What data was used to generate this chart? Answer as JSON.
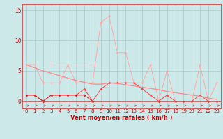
{
  "x": [
    0,
    1,
    2,
    3,
    4,
    5,
    6,
    7,
    8,
    9,
    10,
    11,
    12,
    13,
    14,
    15,
    16,
    17,
    18,
    19,
    20,
    21,
    22,
    23
  ],
  "line_rafales": [
    6.0,
    6.0,
    3.0,
    3.0,
    3.0,
    6.0,
    3.0,
    3.0,
    3.0,
    13.0,
    14.0,
    8.0,
    8.0,
    3.0,
    3.0,
    6.0,
    0.0,
    5.0,
    0.0,
    0.0,
    0.0,
    6.0,
    0.0,
    3.0
  ],
  "line_moy": [
    1.0,
    1.0,
    0.0,
    1.0,
    1.0,
    1.0,
    1.0,
    2.0,
    0.0,
    2.0,
    3.0,
    3.0,
    3.0,
    3.0,
    2.0,
    1.0,
    0.0,
    1.0,
    0.0,
    0.0,
    0.0,
    1.0,
    0.0,
    0.0
  ],
  "line_partial_hi": [
    6.0,
    6.0,
    null,
    6.0,
    6.0,
    6.0,
    6.0,
    6.0,
    6.0,
    null,
    null,
    null,
    null,
    null,
    null,
    null,
    null,
    null,
    null,
    null,
    null,
    null,
    null,
    null
  ],
  "line_partial_lo": [
    1.0,
    1.0,
    0.0,
    1.0,
    1.0,
    1.0,
    1.0,
    1.0,
    0.0,
    null,
    null,
    null,
    null,
    null,
    null,
    null,
    null,
    null,
    null,
    null,
    null,
    null,
    null,
    null
  ],
  "line_trend": [
    6.0,
    5.5,
    5.0,
    4.6,
    4.2,
    3.8,
    3.4,
    3.1,
    2.8,
    2.8,
    3.0,
    2.9,
    2.7,
    2.5,
    2.3,
    2.1,
    1.9,
    1.6,
    1.4,
    1.2,
    1.0,
    0.8,
    0.5,
    0.3
  ],
  "bg_color": "#cce8e8",
  "grid_color": "#aacccc",
  "color_rafales": "#ffaaaa",
  "color_moy": "#ff4444",
  "color_partial_hi": "#ffbbbb",
  "color_partial_lo": "#cc2222",
  "color_trend": "#ff8888",
  "xlabel": "Vent moyen/en rafales ( km/h )",
  "xlim": [
    -0.5,
    23.5
  ],
  "ylim": [
    -1.2,
    16
  ],
  "yticks": [
    0,
    5,
    10,
    15
  ],
  "xticks": [
    0,
    1,
    2,
    3,
    4,
    5,
    6,
    7,
    8,
    9,
    10,
    11,
    12,
    13,
    14,
    15,
    16,
    17,
    18,
    19,
    20,
    21,
    22,
    23
  ],
  "tick_fontsize": 5.0,
  "xlabel_fontsize": 6.0
}
